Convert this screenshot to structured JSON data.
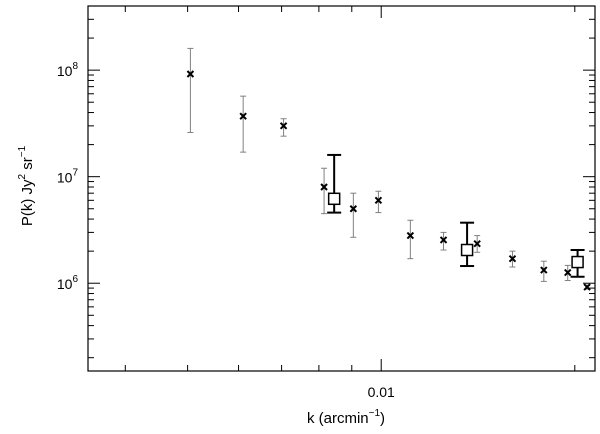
{
  "chart_data": {
    "type": "scatter",
    "xlabel": "k (arcmin",
    "xlabel_sup": "−1",
    "xlabel_close": ")",
    "ylabel_parts": {
      "a": "P(k) Jy",
      "a_sup": "2",
      "b": " sr",
      "b_sup": "−1"
    },
    "x_scale": "log",
    "y_scale": "log",
    "xlim": [
      0.0035,
      0.0215
    ],
    "ylim": [
      150000,
      400000000
    ],
    "x_tick_labels": [
      {
        "value": 0.01,
        "label": "0.01"
      }
    ],
    "y_tick_labels": [
      {
        "value": 1000000,
        "base": "10",
        "exp": "6"
      },
      {
        "value": 10000000,
        "base": "10",
        "exp": "7"
      },
      {
        "value": 100000000,
        "base": "10",
        "exp": "8"
      }
    ],
    "grid": false,
    "legend": "none",
    "series": [
      {
        "marker": "x",
        "color": "#000000",
        "error_color": "#808080",
        "points": [
          {
            "x": 0.00505,
            "y": 92000000,
            "lo": 26000000,
            "hi": 160000000
          },
          {
            "x": 0.0061,
            "y": 37000000,
            "lo": 17000000,
            "hi": 57000000
          },
          {
            "x": 0.00705,
            "y": 30000000,
            "lo": 24000000,
            "hi": 35000000
          },
          {
            "x": 0.00815,
            "y": 8000000,
            "lo": 4500000,
            "hi": 12000000
          },
          {
            "x": 0.00905,
            "y": 5000000,
            "lo": 2700000,
            "hi": 7000000
          },
          {
            "x": 0.0099,
            "y": 6000000,
            "lo": 4600000,
            "hi": 7300000
          },
          {
            "x": 0.0111,
            "y": 2800000,
            "lo": 1700000,
            "hi": 3900000
          },
          {
            "x": 0.0125,
            "y": 2550000,
            "lo": 2050000,
            "hi": 3000000
          },
          {
            "x": 0.0141,
            "y": 2350000,
            "lo": 1950000,
            "hi": 2800000
          },
          {
            "x": 0.016,
            "y": 1700000,
            "lo": 1420000,
            "hi": 2000000
          },
          {
            "x": 0.0179,
            "y": 1330000,
            "lo": 1040000,
            "hi": 1610000
          },
          {
            "x": 0.0195,
            "y": 1260000,
            "lo": 1060000,
            "hi": 1470000
          },
          {
            "x": 0.0209,
            "y": 920000,
            "lo": 880000,
            "hi": 960000
          }
        ]
      },
      {
        "marker": "square",
        "color": "#000000",
        "error_color": "#000000",
        "points": [
          {
            "x": 0.00845,
            "y": 6200000,
            "lo": 4600000,
            "hi": 16000000
          },
          {
            "x": 0.0136,
            "y": 2050000,
            "lo": 1450000,
            "hi": 3700000
          },
          {
            "x": 0.0202,
            "y": 1580000,
            "lo": 1150000,
            "hi": 2050000
          }
        ]
      }
    ]
  }
}
